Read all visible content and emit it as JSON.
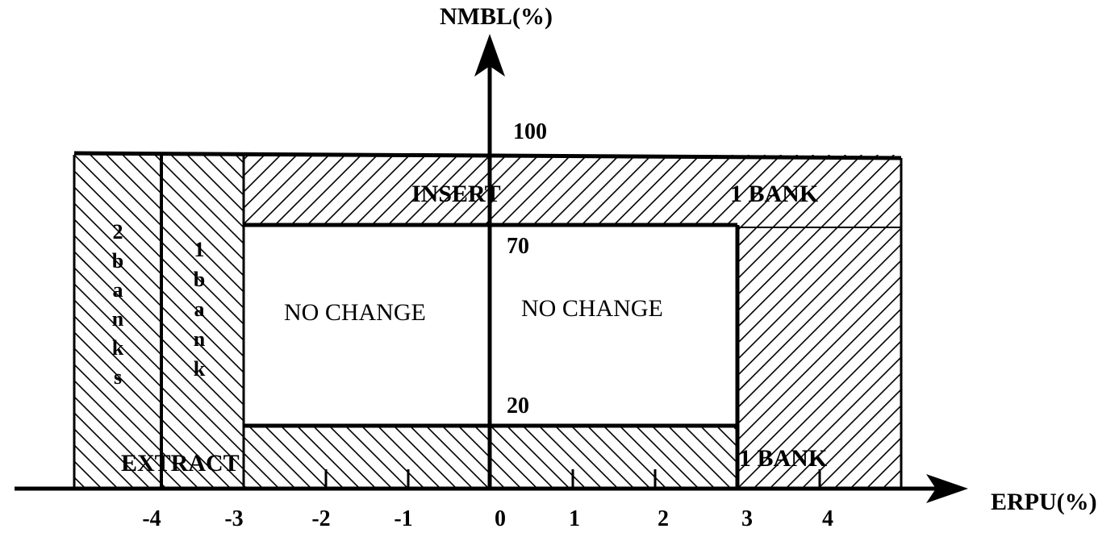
{
  "diagram": {
    "y_axis_title": "NMBL(%)",
    "x_axis_title": "ERPU(%)",
    "y_levels": [
      "100",
      "70",
      "20"
    ],
    "x_ticks": [
      "-4",
      "-3",
      "-2",
      "-1",
      "0",
      "1",
      "2",
      "3",
      "4"
    ],
    "regions": {
      "insert_label": "INSERT",
      "insert_bank_label": "1 BANK",
      "extract_label": "EXTRACT",
      "extract_bank_label": "1 BANK",
      "no_change_left": "NO CHANGE",
      "no_change_right": "NO CHANGE",
      "two_banks_vertical": [
        "2",
        "b",
        "a",
        "n",
        "k",
        "s"
      ],
      "one_bank_vertical": [
        "1",
        "b",
        "a",
        "n",
        "k"
      ]
    },
    "colors": {
      "ink": "#000000",
      "background": "#ffffff"
    }
  }
}
